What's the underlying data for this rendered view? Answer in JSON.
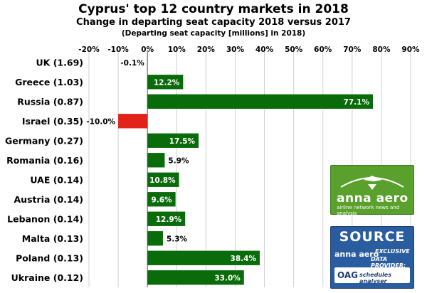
{
  "title": "Cyprus' top 12 country markets in 2018",
  "subtitle": "Change in departing seat capacity 2018 versus 2017",
  "subsubtitle": "(Departing seat capacity [millions] in 2018)",
  "colors": {
    "positive": "#0a6b0a",
    "negative": "#e2231a",
    "grid": "#d0d0d0"
  },
  "chart_data": {
    "type": "bar",
    "orientation": "horizontal",
    "xlim": [
      -20,
      90
    ],
    "x_ticks": [
      "-20%",
      "-10%",
      "0%",
      "10%",
      "20%",
      "30%",
      "40%",
      "50%",
      "60%",
      "70%",
      "80%",
      "90%"
    ],
    "categories": [
      "UK (1.69)",
      "Greece (1.03)",
      "Russia (0.87)",
      "Israel (0.35)",
      "Germany (0.27)",
      "Romania (0.16)",
      "UAE (0.14)",
      "Austria (0.14)",
      "Lebanon (0.14)",
      "Malta (0.13)",
      "Poland (0.13)",
      "Ukraine (0.12)"
    ],
    "values": [
      -0.1,
      12.2,
      77.1,
      -10.0,
      17.5,
      5.9,
      10.8,
      9.6,
      12.9,
      5.3,
      38.4,
      33.0
    ],
    "data_labels": [
      "-0.1%",
      "12.2%",
      "77.1%",
      "-10.0%",
      "17.5%",
      "5.9%",
      "10.8%",
      "9.6%",
      "12.9%",
      "5.3%",
      "38.4%",
      "33.0%"
    ],
    "grid": true,
    "tick_position": "top"
  },
  "logos": {
    "annaaero": {
      "wordmark": "anna aero",
      "tagline": "airline network news and analysis"
    },
    "source": {
      "heading": "SOURCE",
      "wordmark": "anna aero",
      "line1": "EXCLUSIVE",
      "line2": "DATA PROVIDER:",
      "oag": "OAG",
      "product": "schedules analyser"
    }
  }
}
